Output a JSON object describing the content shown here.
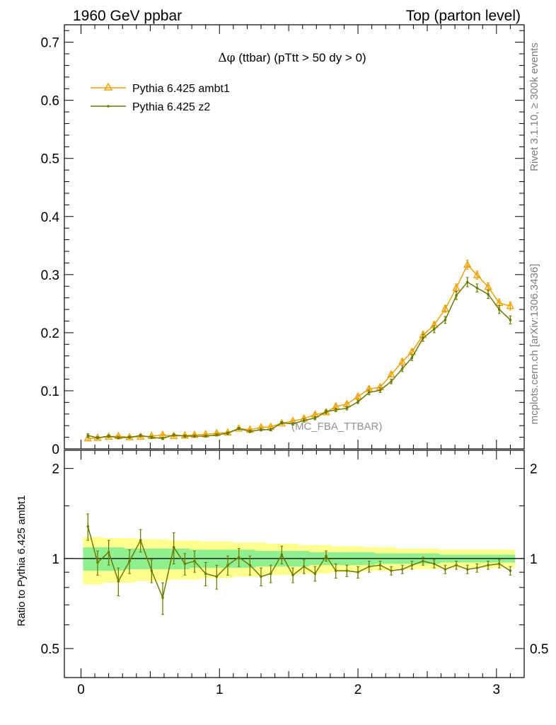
{
  "header": {
    "left": "1960 GeV ppbar",
    "right": "Top (parton level)"
  },
  "plot_title": {
    "symbol": "Δφ",
    "text": " (ttbar) (pTtt > 50 dy > 0)"
  },
  "side_text": {
    "rivet": "Rivet 3.1.10, ≥ 300k events",
    "mcplots": "mcplots.cern.ch [arXiv:1306.3436]"
  },
  "watermark": "(MC_FBA_TTBAR)",
  "ratio_ylabel": "Ratio to Pythia 6.425 ambt1",
  "colors": {
    "ambt1": "#f0a000",
    "z2": "#6b7a00",
    "band_inner": "#90f090",
    "band_outer": "#ffff90"
  },
  "chart_data": [
    {
      "type": "line",
      "panel": "main",
      "xlim": [
        -0.12,
        3.2
      ],
      "ylim": [
        0,
        0.73
      ],
      "x": [
        0.05,
        0.12,
        0.2,
        0.27,
        0.35,
        0.43,
        0.51,
        0.59,
        0.67,
        0.75,
        0.82,
        0.9,
        0.98,
        1.06,
        1.14,
        1.22,
        1.3,
        1.37,
        1.45,
        1.53,
        1.61,
        1.69,
        1.77,
        1.84,
        1.92,
        2.0,
        2.08,
        2.16,
        2.24,
        2.32,
        2.39,
        2.47,
        2.55,
        2.63,
        2.71,
        2.79,
        2.86,
        2.94,
        3.02,
        3.1
      ],
      "yticks": [
        0,
        0.1,
        0.2,
        0.3,
        0.4,
        0.5,
        0.6,
        0.7
      ],
      "ytick_labels": [
        "0",
        "0.1",
        "0.2",
        "0.3",
        "0.4",
        "0.5",
        "0.6",
        "0.7"
      ],
      "legend_position": "top-left",
      "series": [
        {
          "name": "Pythia 6.425 ambt1",
          "marker": "triangle",
          "color": "#f0a000",
          "values": [
            0.018,
            0.019,
            0.021,
            0.022,
            0.02,
            0.021,
            0.022,
            0.024,
            0.022,
            0.023,
            0.024,
            0.025,
            0.027,
            0.028,
            0.035,
            0.033,
            0.037,
            0.038,
            0.044,
            0.048,
            0.052,
            0.059,
            0.063,
            0.073,
            0.077,
            0.09,
            0.103,
            0.106,
            0.128,
            0.15,
            0.167,
            0.196,
            0.213,
            0.241,
            0.277,
            0.317,
            0.299,
            0.279,
            0.251,
            0.246
          ],
          "errors": [
            0.002,
            0.002,
            0.002,
            0.002,
            0.002,
            0.002,
            0.002,
            0.002,
            0.002,
            0.002,
            0.002,
            0.002,
            0.002,
            0.002,
            0.002,
            0.002,
            0.002,
            0.002,
            0.002,
            0.002,
            0.003,
            0.003,
            0.003,
            0.003,
            0.003,
            0.003,
            0.004,
            0.004,
            0.004,
            0.005,
            0.005,
            0.006,
            0.006,
            0.006,
            0.007,
            0.008,
            0.007,
            0.007,
            0.007,
            0.007
          ]
        },
        {
          "name": "Pythia 6.425 z2",
          "marker": "dot",
          "color": "#6b7a00",
          "values": [
            0.023,
            0.019,
            0.022,
            0.019,
            0.02,
            0.023,
            0.02,
            0.018,
            0.024,
            0.022,
            0.022,
            0.022,
            0.024,
            0.027,
            0.035,
            0.03,
            0.033,
            0.033,
            0.045,
            0.043,
            0.049,
            0.053,
            0.064,
            0.067,
            0.07,
            0.081,
            0.097,
            0.101,
            0.116,
            0.138,
            0.157,
            0.191,
            0.206,
            0.222,
            0.264,
            0.287,
            0.277,
            0.266,
            0.24,
            0.222
          ],
          "errors": [
            0.003,
            0.002,
            0.002,
            0.002,
            0.002,
            0.002,
            0.002,
            0.002,
            0.002,
            0.002,
            0.002,
            0.002,
            0.002,
            0.002,
            0.002,
            0.002,
            0.002,
            0.002,
            0.002,
            0.002,
            0.003,
            0.003,
            0.003,
            0.003,
            0.003,
            0.003,
            0.004,
            0.004,
            0.004,
            0.005,
            0.005,
            0.006,
            0.006,
            0.006,
            0.007,
            0.008,
            0.007,
            0.007,
            0.007,
            0.007
          ]
        }
      ]
    },
    {
      "type": "line",
      "panel": "ratio",
      "ylabel": "Ratio to Pythia 6.425 ambt1",
      "xlim": [
        -0.12,
        3.2
      ],
      "ylim": [
        0.4,
        2.3
      ],
      "log_y": true,
      "x": [
        0.05,
        0.12,
        0.2,
        0.27,
        0.35,
        0.43,
        0.51,
        0.59,
        0.67,
        0.75,
        0.82,
        0.9,
        0.98,
        1.06,
        1.14,
        1.22,
        1.3,
        1.37,
        1.45,
        1.53,
        1.61,
        1.69,
        1.77,
        1.84,
        1.92,
        2.0,
        2.08,
        2.16,
        2.24,
        2.32,
        2.39,
        2.47,
        2.55,
        2.63,
        2.71,
        2.79,
        2.86,
        2.94,
        3.02,
        3.1
      ],
      "xticks": [
        0,
        1,
        2,
        3
      ],
      "xtick_labels": [
        "0",
        "1",
        "2",
        "3"
      ],
      "yticks": [
        0.5,
        1,
        2
      ],
      "ytick_labels": [
        "0.5",
        "1",
        "2"
      ],
      "band_outer": [
        0.18,
        0.18,
        0.17,
        0.17,
        0.17,
        0.16,
        0.16,
        0.16,
        0.15,
        0.15,
        0.15,
        0.14,
        0.14,
        0.14,
        0.13,
        0.13,
        0.13,
        0.12,
        0.12,
        0.12,
        0.11,
        0.11,
        0.11,
        0.1,
        0.1,
        0.1,
        0.09,
        0.09,
        0.09,
        0.08,
        0.08,
        0.08,
        0.08,
        0.07,
        0.07,
        0.07,
        0.07,
        0.07,
        0.07,
        0.07
      ],
      "band_inner": [
        0.09,
        0.09,
        0.09,
        0.09,
        0.08,
        0.08,
        0.08,
        0.08,
        0.08,
        0.08,
        0.07,
        0.07,
        0.07,
        0.07,
        0.07,
        0.07,
        0.06,
        0.06,
        0.06,
        0.06,
        0.06,
        0.05,
        0.05,
        0.05,
        0.05,
        0.05,
        0.05,
        0.04,
        0.04,
        0.04,
        0.04,
        0.04,
        0.04,
        0.03,
        0.03,
        0.03,
        0.03,
        0.03,
        0.03,
        0.03
      ],
      "series": [
        {
          "name": "Pythia 6.425 z2",
          "color": "#6b7a00",
          "values": [
            1.28,
            0.97,
            1.05,
            0.84,
            0.98,
            1.15,
            0.91,
            0.74,
            1.09,
            0.96,
            0.98,
            0.89,
            0.87,
            0.95,
            1.01,
            0.95,
            0.87,
            0.89,
            1.03,
            0.88,
            0.94,
            0.89,
            1.02,
            0.91,
            0.91,
            0.9,
            0.94,
            0.95,
            0.91,
            0.92,
            0.95,
            0.98,
            0.96,
            0.92,
            0.95,
            0.92,
            0.93,
            0.95,
            0.96,
            0.91
          ],
          "errors": [
            0.13,
            0.09,
            0.1,
            0.09,
            0.09,
            0.1,
            0.08,
            0.09,
            0.13,
            0.08,
            0.08,
            0.08,
            0.08,
            0.07,
            0.07,
            0.07,
            0.06,
            0.06,
            0.07,
            0.05,
            0.05,
            0.05,
            0.04,
            0.05,
            0.04,
            0.04,
            0.04,
            0.03,
            0.03,
            0.03,
            0.03,
            0.03,
            0.03,
            0.03,
            0.03,
            0.03,
            0.03,
            0.03,
            0.03,
            0.03
          ]
        }
      ]
    }
  ]
}
